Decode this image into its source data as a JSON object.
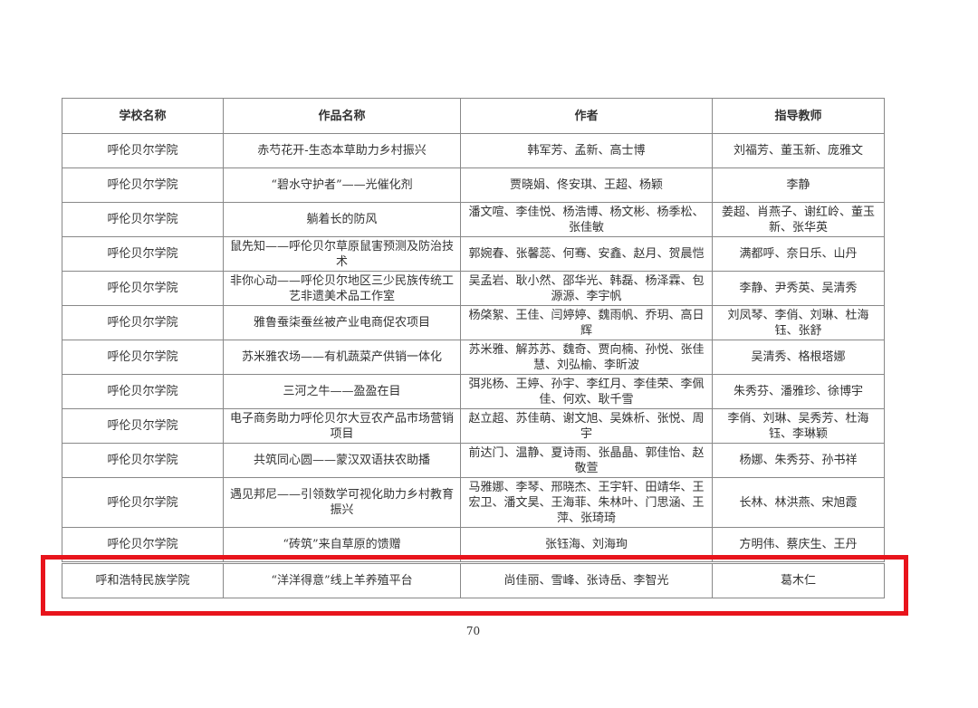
{
  "table": {
    "headers": [
      "学校名称",
      "作品名称",
      "作者",
      "指导教师"
    ],
    "rows": [
      [
        "呼伦贝尔学院",
        "赤芍花开-生态本草助力乡村振兴",
        "韩军芳、孟新、高士博",
        "刘福芳、董玉新、庞雅文"
      ],
      [
        "呼伦贝尔学院",
        "“碧水守护者”——光催化剂",
        "贾晓娟、佟安琪、王超、杨颖",
        "李静"
      ],
      [
        "呼伦贝尔学院",
        "躺着长的防风",
        "潘文喧、李佳悦、杨浩博、杨文彬、杨季松、张佳敏",
        "姜超、肖燕子、谢红岭、董玉新、张华英"
      ],
      [
        "呼伦贝尔学院",
        "鼠先知——呼伦贝尔草原鼠害预测及防治技术",
        "郭婉春、张馨蕊、何骞、安鑫、赵月、贺晨恺",
        "满都呼、奈日乐、山丹"
      ],
      [
        "呼伦贝尔学院",
        "非你心动——呼伦贝尔地区三少民族传统工艺非遗美术品工作室",
        "吴孟岩、耿小然、邵华光、韩磊、杨泽霖、包源源、李宇帆",
        "李静、尹秀英、吴清秀"
      ],
      [
        "呼伦贝尔学院",
        "雅鲁蚕柒蚕丝被产业电商促农项目",
        "杨棨絮、王佳、闫婷婷、魏雨帆、乔玥、高日辉",
        "刘凤琴、李俏、刘琳、杜海钰、张舒"
      ],
      [
        "呼伦贝尔学院",
        "苏米雅农场——有机蔬菜产供销一体化",
        "苏米雅、解苏苏、魏奇、贾向楠、孙悦、张佳慧、刘弘榆、李昕波",
        "吴清秀、格根塔娜"
      ],
      [
        "呼伦贝尔学院",
        "三河之牛——盈盈在目",
        "弭兆杨、王婷、孙宇、李红月、李佳荣、李佩佳、何欢、耿千雪",
        "朱秀芬、潘雅珍、徐博宇"
      ],
      [
        "呼伦贝尔学院",
        "电子商务助力呼伦贝尔大豆农产品市场营销项目",
        "赵立超、苏佳萌、谢文旭、吴姝析、张悦、周宇",
        "李俏、刘琳、吴秀芳、杜海钰、李琳颖"
      ],
      [
        "呼伦贝尔学院",
        "共筑同心圆——蒙汉双语扶农助播",
        "前达门、温静、夏诗雨、张晶晶、郭佳怡、赵敬萱",
        "杨娜、朱秀芬、孙书祥"
      ],
      [
        "呼伦贝尔学院",
        "遇见邦尼——引领数学可视化助力乡村教育振兴",
        "马雅娜、李琴、邢晓杰、王宇轩、田靖华、王宏卫、潘文昊、王海菲、朱林叶、门思涵、王萍、张琦琦",
        "长林、林洪燕、宋旭霞"
      ],
      [
        "呼伦贝尔学院",
        "“砖筑”来自草原的馈赠",
        "张钰海、刘海珣",
        "方明伟、蔡庆生、王丹"
      ],
      [
        "呼和浩特民族学院",
        "“洋洋得意”线上羊养殖平台",
        "尚佳丽、雪峰、张诗岳、李智光",
        "葛木仁"
      ]
    ],
    "highlighted_row": 12,
    "highlight_color": "#e8141c"
  },
  "page_number": "70"
}
